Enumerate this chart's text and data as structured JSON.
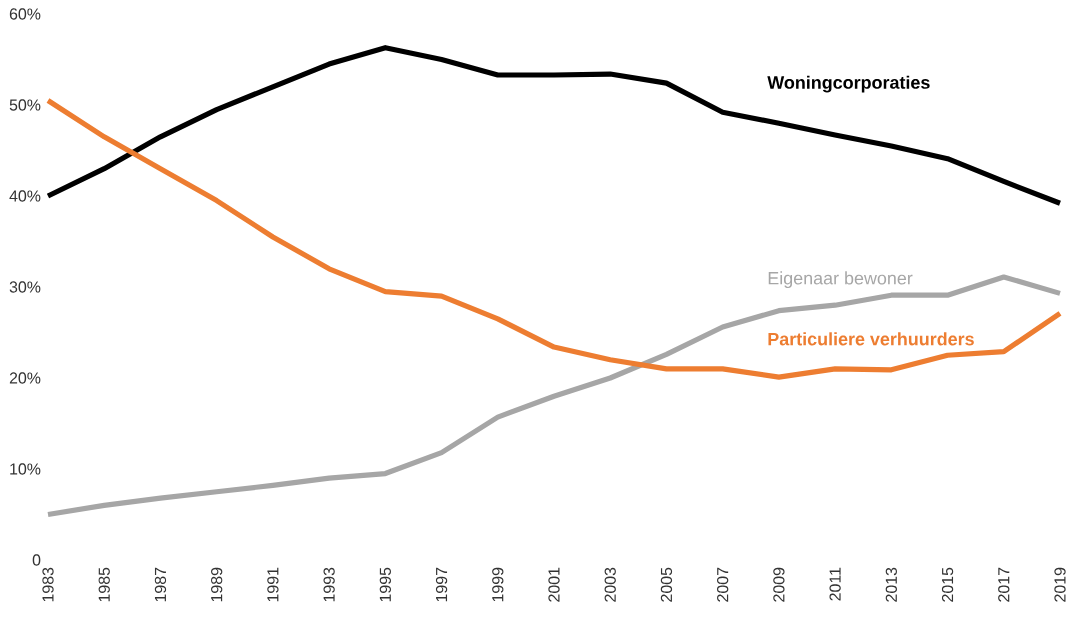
{
  "chart_data": {
    "type": "line",
    "x": [
      1983,
      1985,
      1987,
      1989,
      1991,
      1993,
      1995,
      1997,
      1999,
      2001,
      2003,
      2005,
      2007,
      2009,
      2011,
      2013,
      2015,
      2017,
      2019
    ],
    "xlim": [
      1983,
      2019
    ],
    "xticks": [
      1983,
      1985,
      1987,
      1989,
      1991,
      1993,
      1995,
      1997,
      1999,
      2001,
      2003,
      2005,
      2007,
      2009,
      2011,
      2013,
      2015,
      2017,
      2019
    ],
    "ylim": [
      0,
      60
    ],
    "yticks": [
      {
        "value": 0,
        "label": "0"
      },
      {
        "value": 10,
        "label": "10%"
      },
      {
        "value": 20,
        "label": "20%"
      },
      {
        "value": 30,
        "label": "30%"
      },
      {
        "value": 40,
        "label": "40%"
      },
      {
        "value": 50,
        "label": "50%"
      },
      {
        "value": 60,
        "label": "60%"
      }
    ],
    "grid": false,
    "marker": "none",
    "line_style": "solid",
    "series": [
      {
        "name": "Woningcorporaties",
        "color": "#000000",
        "values": [
          40,
          43,
          46.5,
          49.5,
          52,
          54.5,
          56.3,
          55,
          53.3,
          53.3,
          53.4,
          52.4,
          49.2,
          48,
          46.7,
          45.5,
          44.1,
          41.6,
          39.2
        ]
      },
      {
        "name": "Eigenaar bewoner",
        "color": "#a6a6a6",
        "values": [
          5,
          6,
          6.8,
          7.5,
          8.2,
          9,
          9.5,
          11.8,
          15.7,
          18,
          20,
          22.6,
          25.6,
          27.4,
          28,
          29.1,
          29.1,
          31.1,
          29.3
        ]
      },
      {
        "name": "Particuliere verhuurders",
        "color": "#ed7d31",
        "values": [
          50.5,
          46.5,
          43,
          39.5,
          35.5,
          32,
          29.5,
          29,
          26.5,
          23.4,
          22,
          21,
          21,
          20.1,
          21,
          20.9,
          22.5,
          22.9,
          27.1
        ]
      }
    ]
  }
}
